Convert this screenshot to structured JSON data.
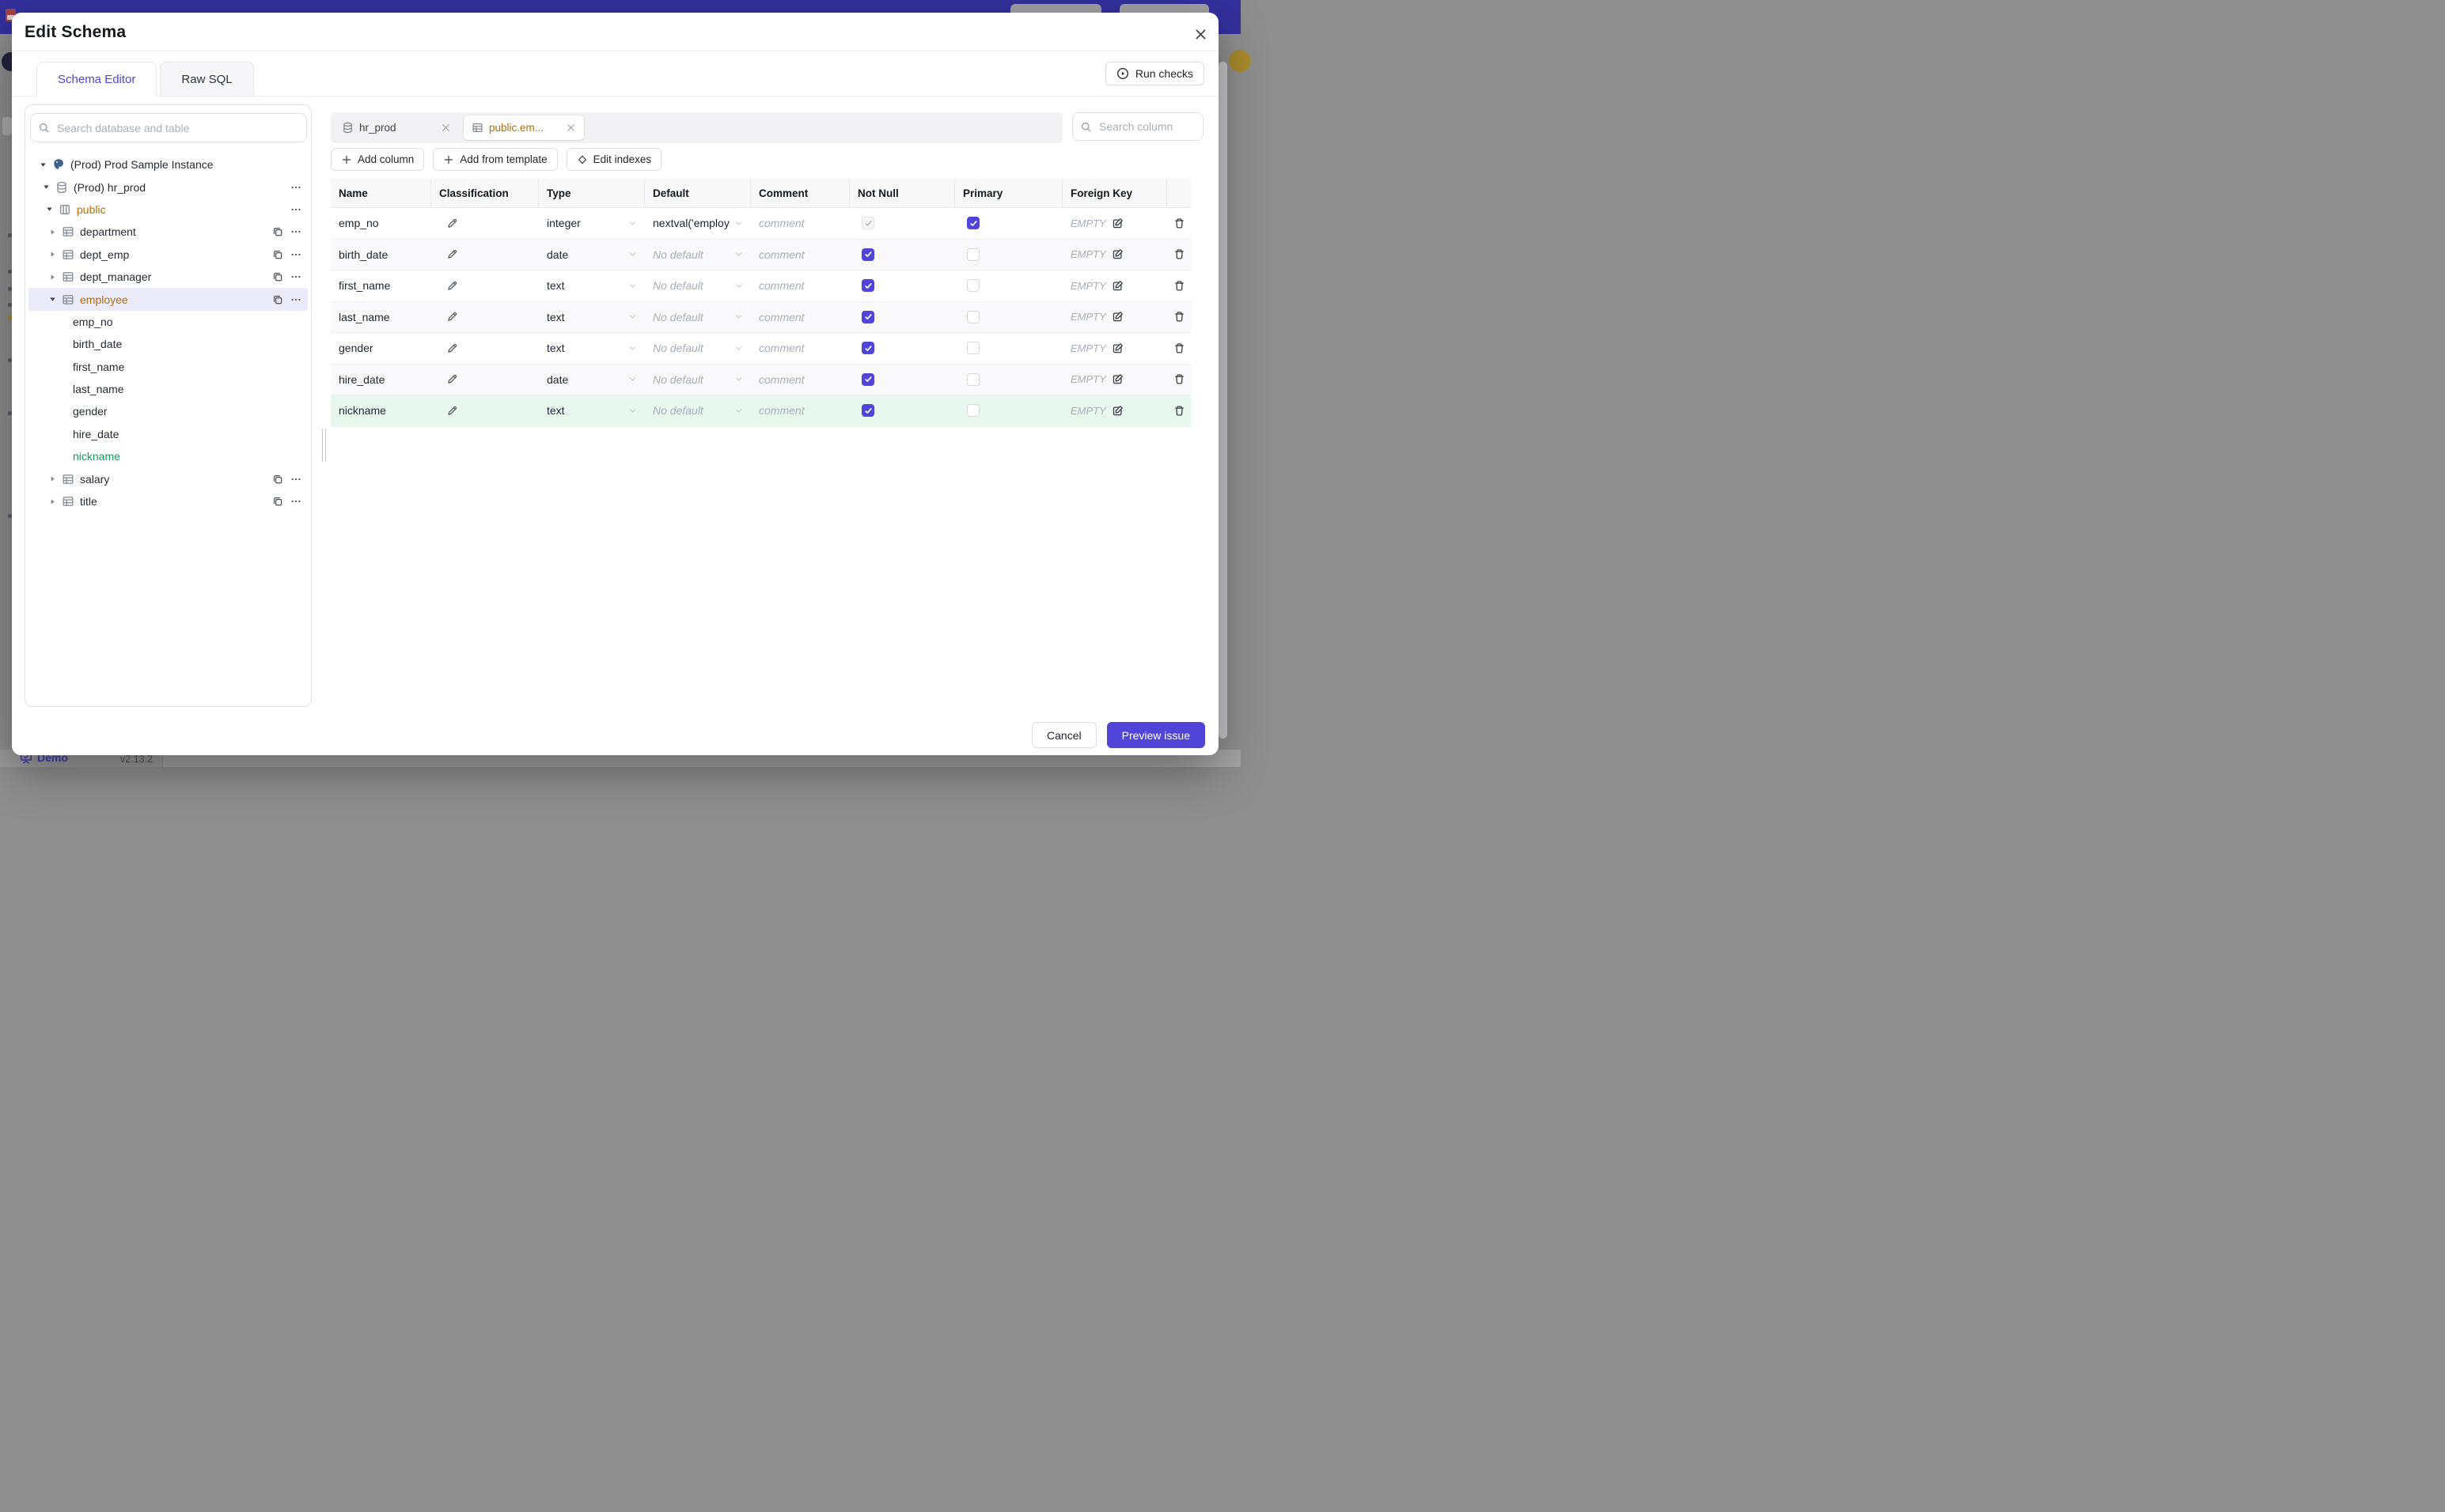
{
  "colors": {
    "accent": "#4f45d8",
    "topbar": "#33309e",
    "schema_orange": "#b06e0a",
    "added_green": "#0e9f53",
    "added_row_bg": "#e9f8ef",
    "selected_tree_bg": "#eaeaf8"
  },
  "backdrop": {
    "demo_label": "Demo",
    "version": "v2.13.2"
  },
  "modal": {
    "title": "Edit Schema",
    "tabs": [
      {
        "label": "Schema Editor",
        "active": true
      },
      {
        "label": "Raw SQL",
        "active": false
      }
    ],
    "run_checks_label": "Run checks"
  },
  "sidebar": {
    "search_placeholder": "Search database and table",
    "tree": [
      {
        "label": "(Prod) Prod Sample Instance",
        "kind": "instance",
        "icon": "postgres",
        "caret": "down",
        "level": 0
      },
      {
        "label": "(Prod) hr_prod",
        "kind": "database",
        "icon": "database",
        "caret": "down",
        "level": 1,
        "more": true
      },
      {
        "label": "public",
        "kind": "schema",
        "icon": "schema",
        "caret": "down",
        "level": 2,
        "more": true,
        "color": "orange"
      },
      {
        "label": "department",
        "kind": "table",
        "icon": "table",
        "caret": "right",
        "level": 3,
        "copy": true,
        "more": true
      },
      {
        "label": "dept_emp",
        "kind": "table",
        "icon": "table",
        "caret": "right",
        "level": 3,
        "copy": true,
        "more": true
      },
      {
        "label": "dept_manager",
        "kind": "table",
        "icon": "table",
        "caret": "right",
        "level": 3,
        "copy": true,
        "more": true
      },
      {
        "label": "employee",
        "kind": "table",
        "icon": "table",
        "caret": "down",
        "level": 3,
        "copy": true,
        "more": true,
        "selected": true,
        "color": "orange"
      },
      {
        "label": "emp_no",
        "kind": "column",
        "level": 4
      },
      {
        "label": "birth_date",
        "kind": "column",
        "level": 4
      },
      {
        "label": "first_name",
        "kind": "column",
        "level": 4
      },
      {
        "label": "last_name",
        "kind": "column",
        "level": 4
      },
      {
        "label": "gender",
        "kind": "column",
        "level": 4
      },
      {
        "label": "hire_date",
        "kind": "column",
        "level": 4
      },
      {
        "label": "nickname",
        "kind": "column",
        "level": 4,
        "color": "green"
      },
      {
        "label": "salary",
        "kind": "table",
        "icon": "table",
        "caret": "right",
        "level": 3,
        "copy": true,
        "more": true
      },
      {
        "label": "title",
        "kind": "table",
        "icon": "table",
        "caret": "right",
        "level": 3,
        "copy": true,
        "more": true
      }
    ]
  },
  "editor": {
    "chips": [
      {
        "label": "hr_prod",
        "icon": "database",
        "active": false
      },
      {
        "label": "public.em...",
        "icon": "table",
        "active": true
      }
    ],
    "column_search_placeholder": "Search column",
    "actions": [
      {
        "label": "Add column",
        "icon": "plus"
      },
      {
        "label": "Add from template",
        "icon": "plus"
      },
      {
        "label": "Edit indexes",
        "icon": "diamond"
      }
    ],
    "table": {
      "columns": [
        "Name",
        "Classification",
        "Type",
        "Default",
        "Comment",
        "Not Null",
        "Primary",
        "Foreign Key"
      ],
      "placeholders": {
        "comment": "comment",
        "no_default": "No default",
        "foreign_key": "EMPTY"
      },
      "rows": [
        {
          "name": "emp_no",
          "type": "integer",
          "default": "nextval('employ",
          "has_default": true,
          "not_null": "checked-disabled",
          "primary": "checked"
        },
        {
          "name": "birth_date",
          "type": "date",
          "default": "No default",
          "has_default": false,
          "not_null": "checked",
          "primary": "unchecked"
        },
        {
          "name": "first_name",
          "type": "text",
          "default": "No default",
          "has_default": false,
          "not_null": "checked",
          "primary": "unchecked"
        },
        {
          "name": "last_name",
          "type": "text",
          "default": "No default",
          "has_default": false,
          "not_null": "checked",
          "primary": "unchecked"
        },
        {
          "name": "gender",
          "type": "text",
          "default": "No default",
          "has_default": false,
          "not_null": "checked",
          "primary": "unchecked"
        },
        {
          "name": "hire_date",
          "type": "date",
          "default": "No default",
          "has_default": false,
          "not_null": "checked",
          "primary": "unchecked"
        },
        {
          "name": "nickname",
          "type": "text",
          "default": "No default",
          "has_default": false,
          "not_null": "checked",
          "primary": "unchecked",
          "highlight": "added"
        }
      ]
    }
  },
  "footer": {
    "cancel_label": "Cancel",
    "submit_label": "Preview issue"
  }
}
